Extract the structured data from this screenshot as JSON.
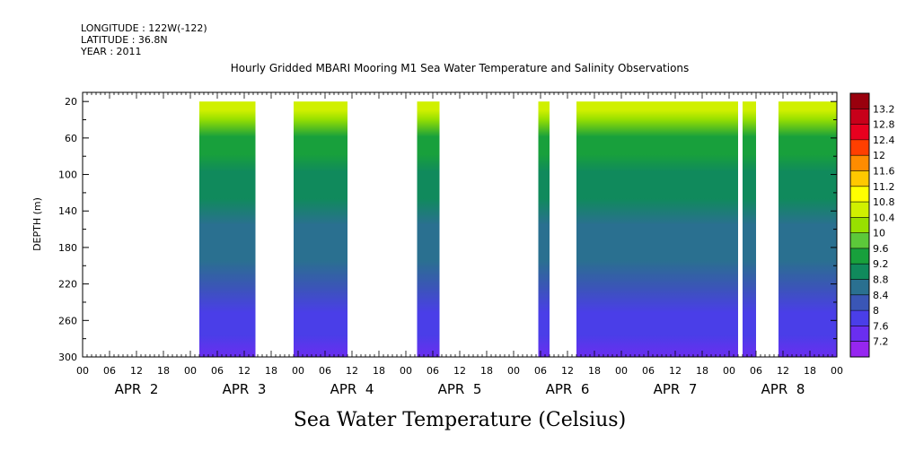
{
  "header": {
    "longitude": "LONGITUDE : 122W(-122)",
    "latitude": "LATITUDE : 36.8N",
    "year": "YEAR : 2011",
    "title": "Hourly Gridded MBARI Mooring M1 Sea Water Temperature and Salinity Observations"
  },
  "footer": {
    "variable_label": "Sea Water Temperature (Celsius)"
  },
  "chart_data": {
    "type": "heatmap",
    "title": "Hourly Gridded MBARI Mooring M1 Sea Water Temperature and Salinity Observations",
    "xlabel": "",
    "ylabel": "DEPTH (m)",
    "units": "Celsius",
    "x_range_hours": [
      0,
      168
    ],
    "y_range_m": [
      300,
      10
    ],
    "y_inverted": true,
    "y_ticks": [
      20,
      60,
      100,
      140,
      180,
      220,
      260,
      300
    ],
    "x_hour_ticks": [
      "00",
      "06",
      "12",
      "18",
      "00",
      "06",
      "12",
      "18",
      "00",
      "06",
      "12",
      "18",
      "00",
      "06",
      "12",
      "18",
      "00",
      "06",
      "12",
      "18",
      "00",
      "06",
      "12",
      "18",
      "00",
      "06",
      "12",
      "18",
      "00"
    ],
    "day_labels": [
      "APR  2",
      "APR  3",
      "APR  4",
      "APR  5",
      "APR  6",
      "APR  7",
      "APR  8"
    ],
    "colorbar_levels": [
      "13.2",
      "12.8",
      "12.4",
      "12",
      "11.6",
      "11.2",
      "10.8",
      "10.4",
      "10",
      "9.6",
      "9.2",
      "8.8",
      "8.4",
      "8",
      "7.6",
      "7.2"
    ],
    "colorbar_colors": [
      "#99000d",
      "#c8001a",
      "#e8001f",
      "#ff3f00",
      "#ff8c00",
      "#ffc800",
      "#ffff00",
      "#d0f000",
      "#98e000",
      "#5cc83a",
      "#18a03c",
      "#108a5c",
      "#2a7090",
      "#3a56b6",
      "#4a3ee8",
      "#6a2ef0",
      "#9626f0"
    ],
    "data_segments_hours": [
      [
        26,
        38.5
      ],
      [
        47,
        59
      ],
      [
        74.5,
        79.5
      ],
      [
        101.5,
        104
      ],
      [
        110,
        146
      ],
      [
        147,
        150
      ],
      [
        155,
        168
      ]
    ],
    "temperature_profile": [
      {
        "depth": 20,
        "temp": 10.6
      },
      {
        "depth": 30,
        "temp": 10.0
      },
      {
        "depth": 50,
        "temp": 9.5
      },
      {
        "depth": 70,
        "temp": 9.3
      },
      {
        "depth": 90,
        "temp": 9.1
      },
      {
        "depth": 120,
        "temp": 8.9
      },
      {
        "depth": 150,
        "temp": 8.7
      },
      {
        "depth": 190,
        "temp": 8.4
      },
      {
        "depth": 220,
        "temp": 8.1
      },
      {
        "depth": 250,
        "temp": 7.9
      },
      {
        "depth": 275,
        "temp": 7.7
      },
      {
        "depth": 300,
        "temp": 7.5
      }
    ]
  }
}
